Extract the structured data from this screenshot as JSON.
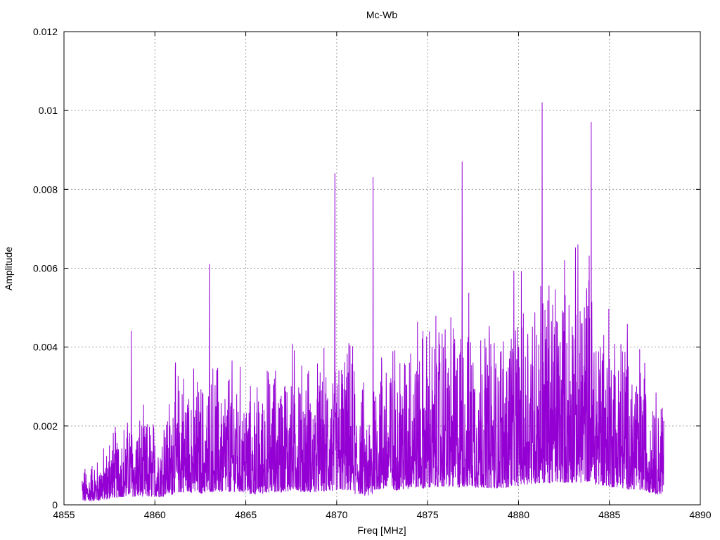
{
  "chart_data": {
    "type": "line",
    "title": "Mc-Wb",
    "xlabel": "Freq [MHz]",
    "ylabel": "Amplitude",
    "xlim": [
      4855,
      4890
    ],
    "ylim": [
      0,
      0.012
    ],
    "x_ticks": [
      "4855",
      "4860",
      "4865",
      "4870",
      "4875",
      "4880",
      "4885",
      "4890"
    ],
    "y_ticks": [
      "0",
      "0.002",
      "0.004",
      "0.006",
      "0.008",
      "0.01",
      "0.012"
    ],
    "grid": true,
    "series": [
      {
        "color": "#9400d3",
        "x": [
          4856.0,
          4856.5,
          4857.0,
          4857.5,
          4858.0,
          4858.5,
          4858.7,
          4859.0,
          4859.5,
          4860.0,
          4860.5,
          4861.0,
          4861.5,
          4862.0,
          4862.5,
          4863.0,
          4863.5,
          4864.0,
          4864.5,
          4865.0,
          4865.5,
          4866.0,
          4866.5,
          4867.0,
          4867.5,
          4868.0,
          4868.5,
          4869.0,
          4869.5,
          4869.9,
          4870.5,
          4871.0,
          4871.5,
          4872.0,
          4872.5,
          4873.0,
          4873.5,
          4874.0,
          4874.5,
          4875.0,
          4875.5,
          4876.0,
          4876.5,
          4876.9,
          4877.5,
          4878.0,
          4878.5,
          4879.0,
          4879.5,
          4880.0,
          4880.5,
          4881.0,
          4881.3,
          4881.5,
          4882.0,
          4882.5,
          4883.0,
          4883.5,
          4884.0,
          4884.5,
          4885.0,
          4885.5,
          4886.0,
          4886.5,
          4887.0,
          4887.5,
          4888.0
        ],
        "y": [
          0.0006,
          0.0009,
          0.0008,
          0.0015,
          0.0014,
          0.0018,
          0.0044,
          0.0016,
          0.0017,
          0.0015,
          0.0019,
          0.0022,
          0.0028,
          0.0024,
          0.0023,
          0.0061,
          0.0026,
          0.0024,
          0.0028,
          0.0022,
          0.002,
          0.0024,
          0.0026,
          0.0025,
          0.003,
          0.0028,
          0.0024,
          0.0026,
          0.0027,
          0.0084,
          0.0029,
          0.0028,
          0.0018,
          0.0083,
          0.003,
          0.0031,
          0.0028,
          0.0036,
          0.0033,
          0.0032,
          0.0035,
          0.0037,
          0.0034,
          0.0087,
          0.0036,
          0.0033,
          0.0035,
          0.0032,
          0.0037,
          0.004,
          0.0041,
          0.0043,
          0.0102,
          0.0042,
          0.0045,
          0.0044,
          0.0043,
          0.0046,
          0.0097,
          0.004,
          0.0037,
          0.0034,
          0.0032,
          0.003,
          0.0028,
          0.0022,
          0.0021
        ]
      }
    ]
  }
}
